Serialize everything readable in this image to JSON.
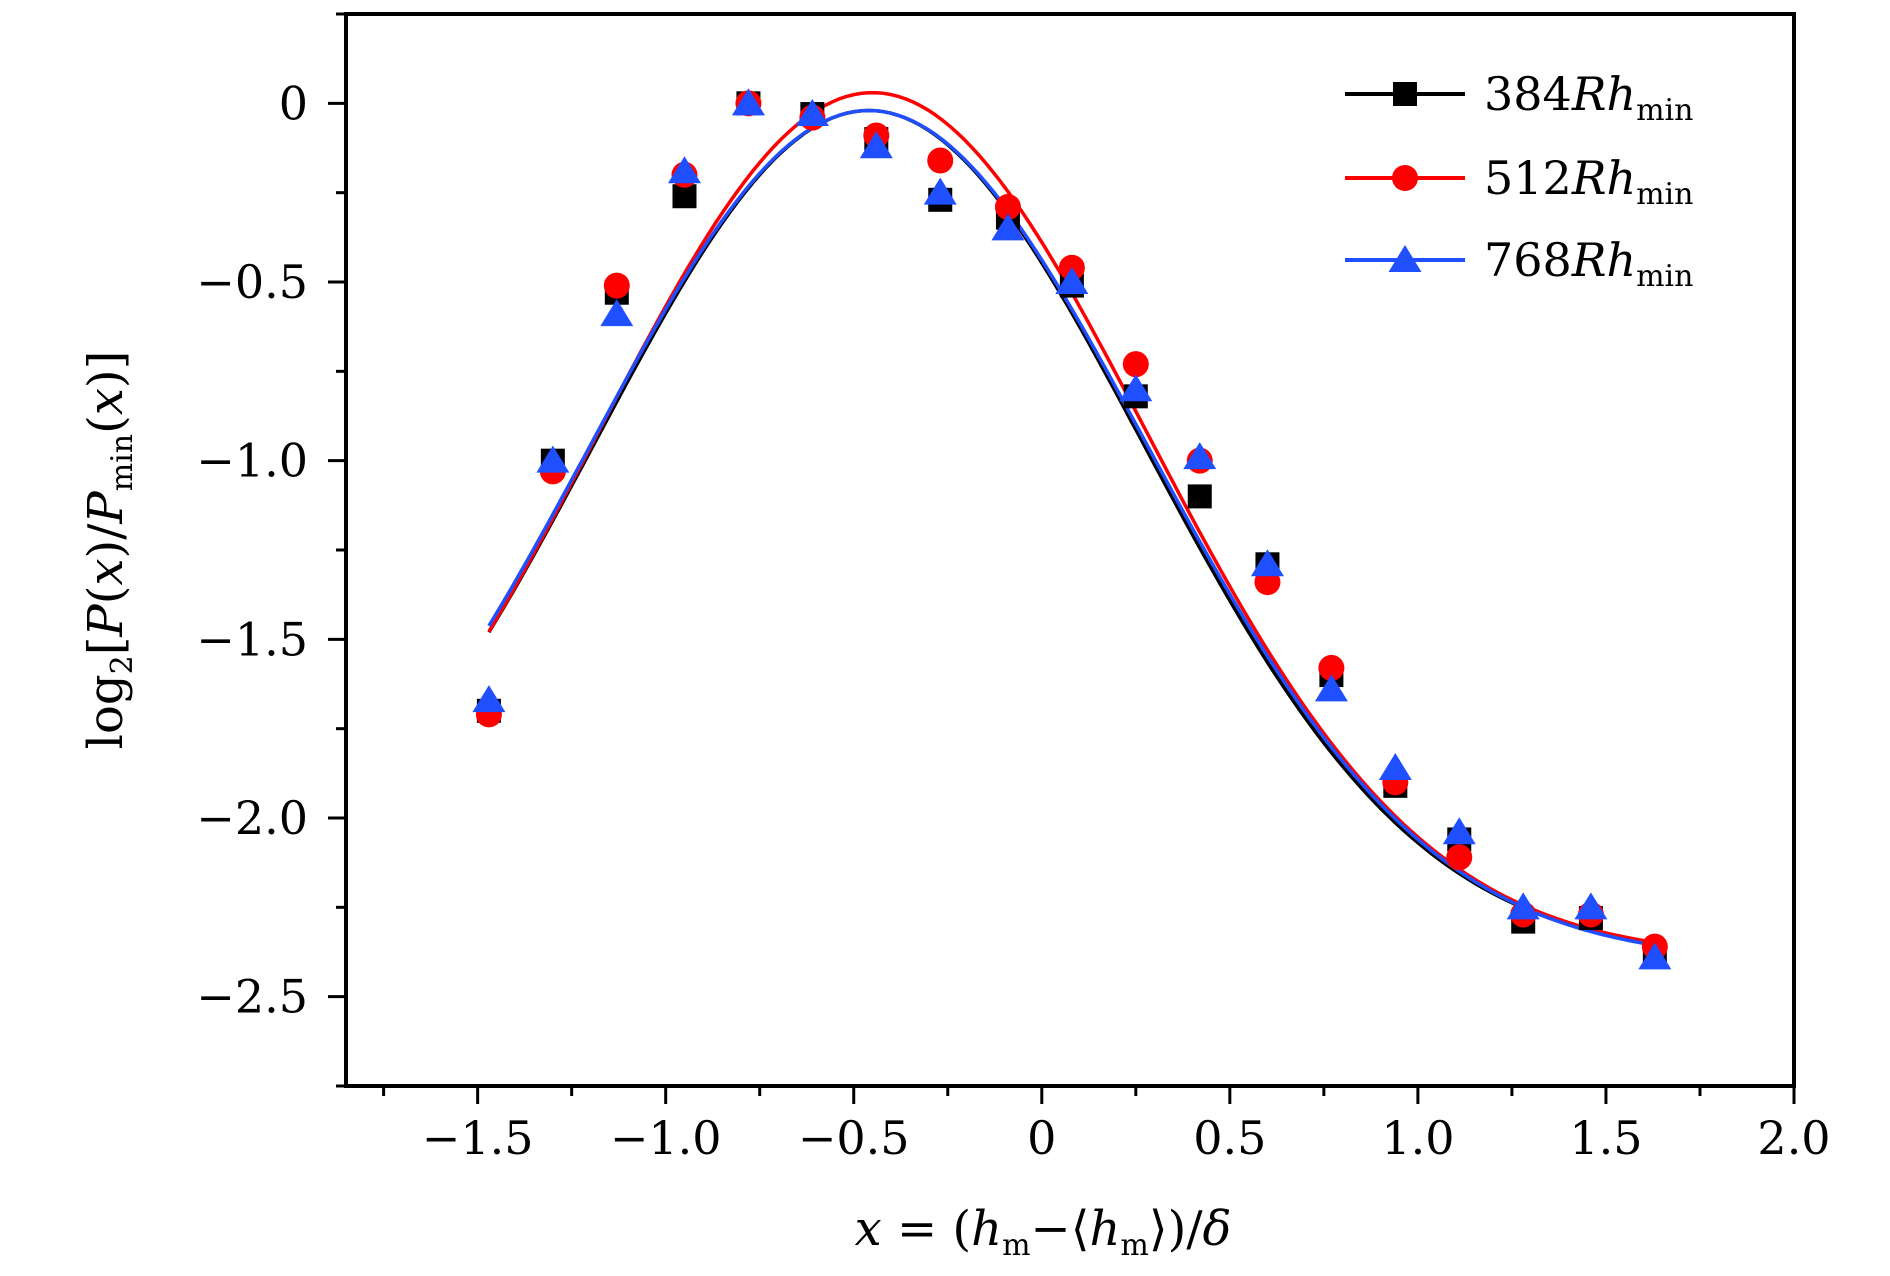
{
  "chart_data": {
    "type": "scatter",
    "title": "",
    "xlabel": "x = (h_m − ⟨h_m⟩)/δ",
    "ylabel": "log₂[P(x)/P_min(x)]",
    "xlim": [
      -1.85,
      2.0
    ],
    "ylim": [
      -2.75,
      0.25
    ],
    "x_ticks": [
      -1.5,
      -1.0,
      -0.5,
      0,
      0.5,
      1.0,
      1.5,
      2.0
    ],
    "x_tick_labels": [
      "−1.5",
      "−1.0",
      "−0.5",
      "0",
      "0.5",
      "1.0",
      "1.5",
      "2.0"
    ],
    "y_ticks": [
      0,
      -0.5,
      -1.0,
      -1.5,
      -2.0,
      -2.5
    ],
    "y_tick_labels": [
      "0",
      "−0.5",
      "−1.0",
      "−1.5",
      "−2.0",
      "−2.5"
    ],
    "grid": false,
    "legend_position": "top-right",
    "series": [
      {
        "name": "384Rh_min",
        "color": "#000000",
        "marker": "square",
        "x": [
          -1.47,
          -1.3,
          -1.13,
          -0.95,
          -0.78,
          -0.61,
          -0.44,
          -0.27,
          -0.09,
          0.08,
          0.25,
          0.42,
          0.6,
          0.77,
          0.94,
          1.11,
          1.28,
          1.46,
          1.63
        ],
        "y": [
          -1.7,
          -1.0,
          -0.53,
          -0.26,
          0.0,
          -0.03,
          -0.1,
          -0.27,
          -0.32,
          -0.51,
          -0.82,
          -1.1,
          -1.29,
          -1.6,
          -1.91,
          -2.06,
          -2.29,
          -2.28,
          -2.38
        ],
        "fit": {
          "amplitude": 2.37,
          "mu": -0.46,
          "sigma": 0.73,
          "offset": -2.39,
          "x_range": [
            -1.47,
            1.64
          ]
        }
      },
      {
        "name": "512Rh_min",
        "color": "#ff0000",
        "marker": "circle",
        "x": [
          -1.47,
          -1.3,
          -1.13,
          -0.95,
          -0.78,
          -0.61,
          -0.44,
          -0.27,
          -0.09,
          0.08,
          0.25,
          0.42,
          0.6,
          0.77,
          0.94,
          1.11,
          1.28,
          1.46,
          1.63
        ],
        "y": [
          -1.71,
          -1.03,
          -0.51,
          -0.2,
          0.0,
          -0.04,
          -0.09,
          -0.16,
          -0.29,
          -0.46,
          -0.73,
          -1.0,
          -1.34,
          -1.58,
          -1.9,
          -2.11,
          -2.27,
          -2.27,
          -2.36
        ],
        "fit": {
          "amplitude": 2.42,
          "mu": -0.45,
          "sigma": 0.73,
          "offset": -2.39,
          "x_range": [
            -1.47,
            1.64
          ]
        }
      },
      {
        "name": "768Rh_min",
        "color": "#1f4fff",
        "marker": "triangle",
        "x": [
          -1.47,
          -1.3,
          -1.13,
          -0.95,
          -0.78,
          -0.61,
          -0.44,
          -0.27,
          -0.09,
          0.08,
          0.25,
          0.42,
          0.6,
          0.77,
          0.94,
          1.11,
          1.28,
          1.46,
          1.63
        ],
        "y": [
          -1.67,
          -1.0,
          -0.59,
          -0.19,
          0.0,
          -0.03,
          -0.12,
          -0.25,
          -0.35,
          -0.5,
          -0.8,
          -0.99,
          -1.29,
          -1.64,
          -1.86,
          -2.04,
          -2.25,
          -2.25,
          -2.39
        ],
        "fit": {
          "amplitude": 2.38,
          "mu": -0.46,
          "sigma": 0.74,
          "offset": -2.4,
          "x_range": [
            -1.47,
            1.64
          ]
        }
      }
    ]
  }
}
